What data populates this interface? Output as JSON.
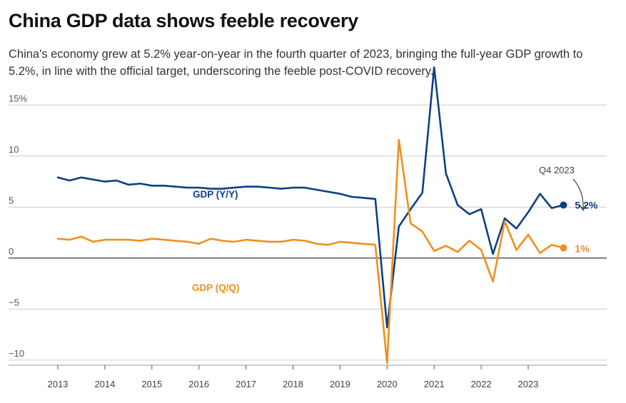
{
  "title": "China GDP data shows feeble recovery",
  "subtitle": "China's economy grew at 5.2% year-on-year in the fourth quarter of 2023, bringing the full-year GDP growth to 5.2%, in line with the official target, underscoring the feeble post-COVID recovery.",
  "colors": {
    "yy": "#0d3f84",
    "qq": "#f28e1c",
    "grid": "#cccccc",
    "zero": "#222222"
  },
  "chart_data": {
    "type": "line",
    "title": "China GDP data shows feeble recovery",
    "xlabel": "",
    "ylabel": "",
    "ylim": [
      -10.5,
      16
    ],
    "y_ticks": [
      {
        "value": 15,
        "label": "15%"
      },
      {
        "value": 10,
        "label": "10"
      },
      {
        "value": 5,
        "label": "5"
      },
      {
        "value": 0,
        "label": "0"
      },
      {
        "value": -5,
        "label": "−5"
      },
      {
        "value": -10,
        "label": "−10"
      }
    ],
    "x_ticks": [
      "2013",
      "2014",
      "2015",
      "2016",
      "2017",
      "2018",
      "2019",
      "2020",
      "2021",
      "2022",
      "2023"
    ],
    "x_start_year": 2013,
    "grid": true,
    "series": [
      {
        "name": "GDP (Y/Y)",
        "color": "#0d3f84",
        "values": [
          7.9,
          7.6,
          7.9,
          7.7,
          7.5,
          7.6,
          7.2,
          7.3,
          7.1,
          7.1,
          7.0,
          6.9,
          6.9,
          6.8,
          6.8,
          6.9,
          7.0,
          7.0,
          6.9,
          6.8,
          6.9,
          6.9,
          6.7,
          6.5,
          6.3,
          6.0,
          5.9,
          5.8,
          -6.8,
          3.1,
          4.8,
          6.4,
          18.7,
          8.3,
          5.2,
          4.3,
          4.8,
          0.4,
          3.9,
          2.9,
          4.5,
          6.3,
          4.9,
          5.2
        ]
      },
      {
        "name": "GDP (Q/Q)",
        "color": "#f28e1c",
        "values": [
          1.9,
          1.8,
          2.1,
          1.6,
          1.8,
          1.8,
          1.8,
          1.7,
          1.9,
          1.8,
          1.7,
          1.6,
          1.4,
          1.9,
          1.7,
          1.6,
          1.8,
          1.7,
          1.6,
          1.6,
          1.8,
          1.7,
          1.4,
          1.3,
          1.6,
          1.5,
          1.4,
          1.3,
          -10.3,
          11.6,
          3.4,
          2.6,
          0.7,
          1.2,
          0.6,
          1.7,
          0.8,
          -2.3,
          3.6,
          0.8,
          2.3,
          0.5,
          1.3,
          1.0
        ]
      }
    ],
    "annotations": {
      "last_point_label": "Q4 2023",
      "yy_end_label": "5.2%",
      "qq_end_label": "1%"
    }
  }
}
